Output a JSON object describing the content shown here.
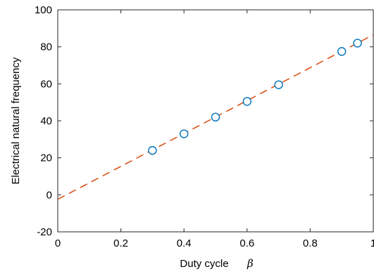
{
  "chart_data": {
    "type": "scatter",
    "title": "",
    "xlabel": "Duty cycle",
    "xlabel_symbol": "β",
    "ylabel": "Electrical natural frequency",
    "xlim": [
      0,
      1
    ],
    "ylim": [
      -20,
      100
    ],
    "xticks": [
      "0",
      "0.2",
      "0.4",
      "0.6",
      "0.8",
      "1"
    ],
    "yticks": [
      "-20",
      "0",
      "20",
      "40",
      "60",
      "80",
      "100"
    ],
    "grid": false,
    "legend": "none",
    "series": [
      {
        "kind": "points",
        "marker": "open-circle",
        "color": "#0072BD",
        "x": [
          0.3,
          0.4,
          0.5,
          0.6,
          0.7,
          0.9,
          0.95
        ],
        "y": [
          24,
          33,
          42,
          50.5,
          59.5,
          77.5,
          82
        ]
      },
      {
        "kind": "fit-line",
        "style": "dashed",
        "color": "#D95319",
        "x": [
          0,
          1
        ],
        "y": [
          -2.4,
          86.5
        ]
      }
    ]
  }
}
